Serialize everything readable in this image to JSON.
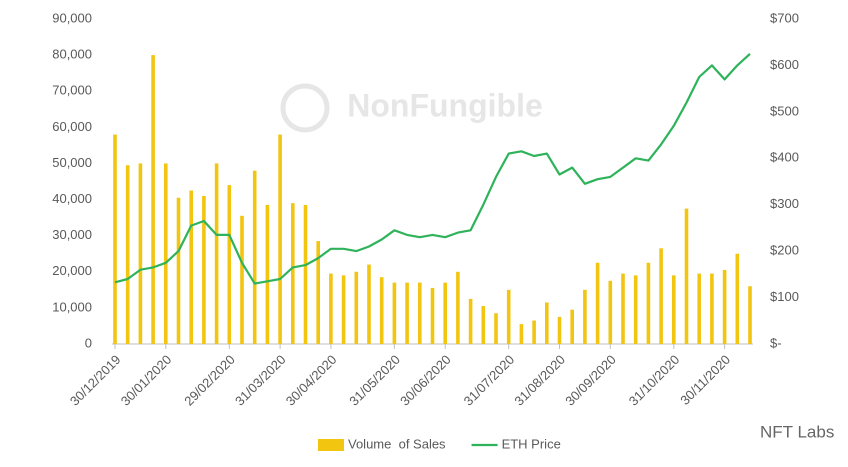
{
  "chart_data": {
    "type": "bar_line",
    "watermark": "NonFungible",
    "source": "NFT Labs",
    "categories": [
      "30/12/2019",
      null,
      null,
      null,
      "30/01/2020",
      null,
      null,
      null,
      null,
      "29/02/2020",
      null,
      null,
      null,
      "31/03/2020",
      null,
      null,
      null,
      "30/04/2020",
      null,
      null,
      null,
      null,
      "31/05/2020",
      null,
      null,
      null,
      "30/06/2020",
      null,
      null,
      null,
      null,
      "31/07/2020",
      null,
      null,
      null,
      "31/08/2020",
      null,
      null,
      null,
      "30/09/2020",
      null,
      null,
      null,
      null,
      "31/10/2020",
      null,
      null,
      null,
      "30/11/2020",
      null,
      null
    ],
    "series": [
      {
        "name": "Volume  of Sales",
        "type": "bar",
        "color": "#f2c511",
        "values": [
          58000,
          49500,
          50000,
          80000,
          50000,
          40500,
          42500,
          41000,
          50000,
          44000,
          35500,
          48000,
          38500,
          58000,
          39000,
          38500,
          28500,
          19500,
          19000,
          20000,
          22000,
          18500,
          17000,
          17000,
          17000,
          15500,
          17000,
          20000,
          12500,
          10500,
          8500,
          15000,
          5500,
          6500,
          11500,
          7500,
          9500,
          15000,
          22500,
          17500,
          19500,
          19000,
          22500,
          26500,
          19000,
          37500,
          19500,
          19500,
          20500,
          25000,
          16000
        ]
      },
      {
        "name": "ETH Price",
        "type": "line",
        "axis": "y2",
        "color": "#2eb35a",
        "values": [
          133,
          140,
          160,
          165,
          175,
          200,
          255,
          265,
          235,
          235,
          175,
          130,
          135,
          140,
          165,
          170,
          185,
          205,
          205,
          200,
          210,
          225,
          245,
          235,
          230,
          235,
          230,
          240,
          245,
          300,
          360,
          410,
          415,
          405,
          410,
          365,
          380,
          345,
          355,
          360,
          380,
          400,
          395,
          430,
          470,
          520,
          575,
          600,
          570,
          600,
          625
        ]
      }
    ],
    "ylim": [
      0,
      90000
    ],
    "yticks": [
      0,
      {
        "value": 10000,
        "label": "10,000"
      },
      {
        "value": 20000,
        "label": "20,000"
      },
      {
        "value": 30000,
        "label": "30,000"
      },
      {
        "value": 40000,
        "label": "40,000"
      },
      {
        "value": 50000,
        "label": "50,000"
      },
      {
        "value": 60000,
        "label": "60,000"
      },
      {
        "value": 70000,
        "label": "70,000"
      },
      {
        "value": 80000,
        "label": "80,000"
      },
      {
        "value": 90000,
        "label": "90,000"
      }
    ],
    "y2lim": [
      0,
      700
    ],
    "y2ticks": [
      {
        "value": 0,
        "label": "$-"
      },
      {
        "value": 100,
        "label": "$100"
      },
      {
        "value": 200,
        "label": "$200"
      },
      {
        "value": 300,
        "label": "$300"
      },
      {
        "value": 400,
        "label": "$400"
      },
      {
        "value": 500,
        "label": "$500"
      },
      {
        "value": 600,
        "label": "$600"
      },
      {
        "value": 700,
        "label": "$700"
      }
    ],
    "grid": false,
    "legend": "bottom"
  }
}
